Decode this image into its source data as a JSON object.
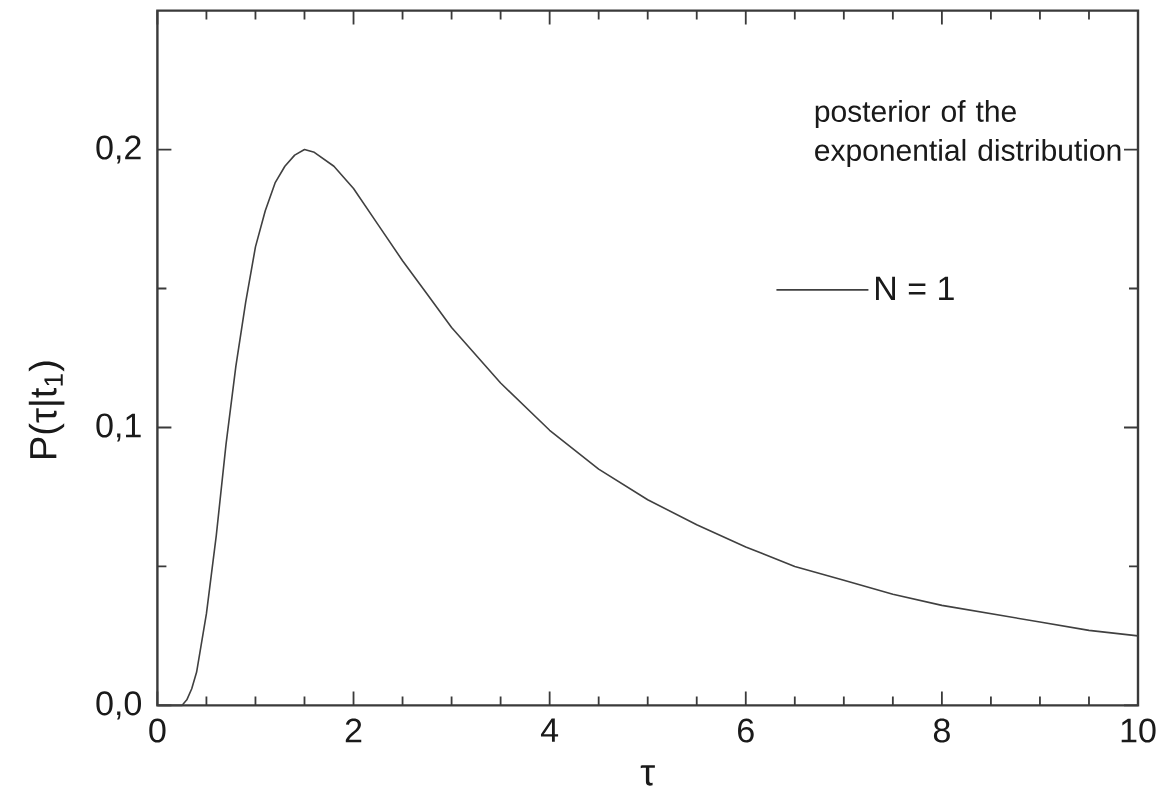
{
  "chart_data": {
    "type": "line",
    "xlabel": "τ",
    "ylabel": "P(τ|t$_{1}$)",
    "annotations": [
      "posterior of the exponential distribution"
    ],
    "x": [
      0,
      0.25,
      0.3,
      0.35,
      0.4,
      0.5,
      0.6,
      0.7,
      0.8,
      0.9,
      1.0,
      1.1,
      1.2,
      1.3,
      1.4,
      1.5,
      1.6,
      1.8,
      2.0,
      2.25,
      2.5,
      2.75,
      3.0,
      3.5,
      4.0,
      4.5,
      5,
      5.5,
      6,
      6.5,
      7,
      7.5,
      8,
      8.5,
      9,
      9.5,
      10
    ],
    "series": [
      {
        "name": "N = 1",
        "color": "#404040",
        "values": [
          0,
          0,
          0.002,
          0.006,
          0.012,
          0.033,
          0.061,
          0.094,
          0.122,
          0.145,
          0.165,
          0.178,
          0.188,
          0.194,
          0.198,
          0.2,
          0.199,
          0.194,
          0.186,
          0.173,
          0.16,
          0.148,
          0.136,
          0.116,
          0.099,
          0.085,
          0.074,
          0.065,
          0.057,
          0.05,
          0.045,
          0.04,
          0.036,
          0.033,
          0.03,
          0.027,
          0.025
        ]
      }
    ],
    "xlim": [
      0,
      10
    ],
    "ylim": [
      0,
      0.25
    ],
    "xticks": [
      0,
      {
        "value": 0.5,
        "label": null
      },
      {
        "value": 1,
        "label": null
      },
      {
        "value": 1.5,
        "label": null
      },
      2,
      {
        "value": 2.5,
        "label": null
      },
      {
        "value": 3,
        "label": null
      },
      {
        "value": 3.5,
        "label": null
      },
      4,
      {
        "value": 4.5,
        "label": null
      },
      {
        "value": 5,
        "label": null
      },
      {
        "value": 5.5,
        "label": null
      },
      6,
      {
        "value": 6.5,
        "label": null
      },
      {
        "value": 7,
        "label": null
      },
      {
        "value": 7.5,
        "label": null
      },
      8,
      {
        "value": 8.5,
        "label": null
      },
      {
        "value": 9,
        "label": null
      },
      {
        "value": 9.5,
        "label": null
      },
      10
    ],
    "yticks": [
      {
        "value": 0,
        "label": "0,0"
      },
      {
        "value": 0.05,
        "label": null
      },
      {
        "value": 0.1,
        "label": "0,1"
      },
      {
        "value": 0.15,
        "label": null
      },
      {
        "value": 0.2,
        "label": "0,2"
      }
    ],
    "legend": "right",
    "marker": "none",
    "line_style": "solid"
  }
}
